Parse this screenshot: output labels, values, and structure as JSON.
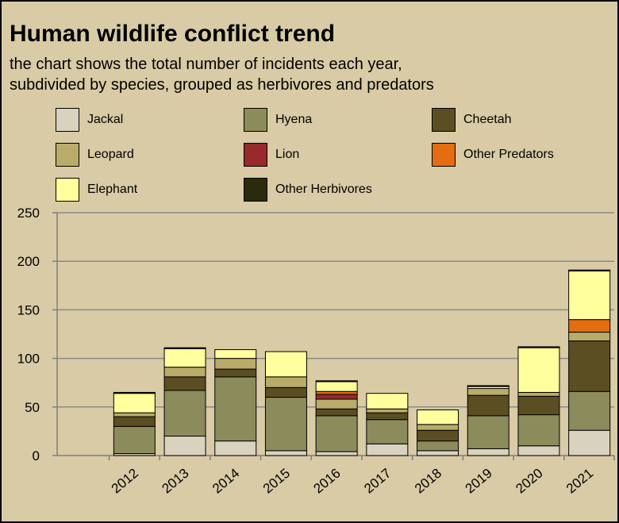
{
  "title": "Human wildlife conflict trend",
  "subtitle_lines": [
    "the chart shows the total number of incidents each year,",
    "subdivided by species, grouped as herbivores and predators"
  ],
  "chart_data": {
    "type": "bar",
    "stacked": true,
    "title": "Human wildlife conflict trend",
    "subtitle": "the chart shows the total number of incidents each year, subdivided by species, grouped as herbivores and predators",
    "categories": [
      "2012",
      "2013",
      "2014",
      "2015",
      "2016",
      "2017",
      "2018",
      "2019",
      "2020",
      "2021"
    ],
    "ylim": [
      0,
      250
    ],
    "yticks": [
      0,
      50,
      100,
      150,
      200,
      250
    ],
    "grid": true,
    "legend_position": "top",
    "series": [
      {
        "name": "Jackal",
        "color": "#d8d2be",
        "values": [
          2,
          20,
          15,
          5,
          4,
          12,
          5,
          7,
          10,
          26
        ]
      },
      {
        "name": "Hyena",
        "color": "#8c8b5b",
        "values": [
          28,
          47,
          66,
          55,
          37,
          25,
          10,
          34,
          32,
          40
        ]
      },
      {
        "name": "Cheetah",
        "color": "#5b4e22",
        "values": [
          10,
          14,
          8,
          10,
          7,
          7,
          11,
          21,
          19,
          52
        ]
      },
      {
        "name": "Leopard",
        "color": "#b9ac6a",
        "values": [
          4,
          10,
          11,
          11,
          10,
          4,
          6,
          7,
          4,
          9
        ]
      },
      {
        "name": "Lion",
        "color": "#962a2c",
        "values": [
          0,
          0,
          0,
          0,
          5,
          0,
          0,
          0,
          0,
          0
        ]
      },
      {
        "name": "Other Predators",
        "color": "#e36d10",
        "values": [
          0,
          0,
          0,
          0,
          3,
          0,
          0,
          0,
          0,
          13
        ]
      },
      {
        "name": "Elephant",
        "color": "#ffff9e",
        "values": [
          20,
          19,
          9,
          26,
          10,
          16,
          15,
          2,
          46,
          50
        ]
      },
      {
        "name": "Other Herbivores",
        "color": "#2b2b0c",
        "values": [
          1,
          1,
          0,
          0,
          1,
          0,
          0,
          1,
          1,
          1
        ]
      }
    ]
  }
}
